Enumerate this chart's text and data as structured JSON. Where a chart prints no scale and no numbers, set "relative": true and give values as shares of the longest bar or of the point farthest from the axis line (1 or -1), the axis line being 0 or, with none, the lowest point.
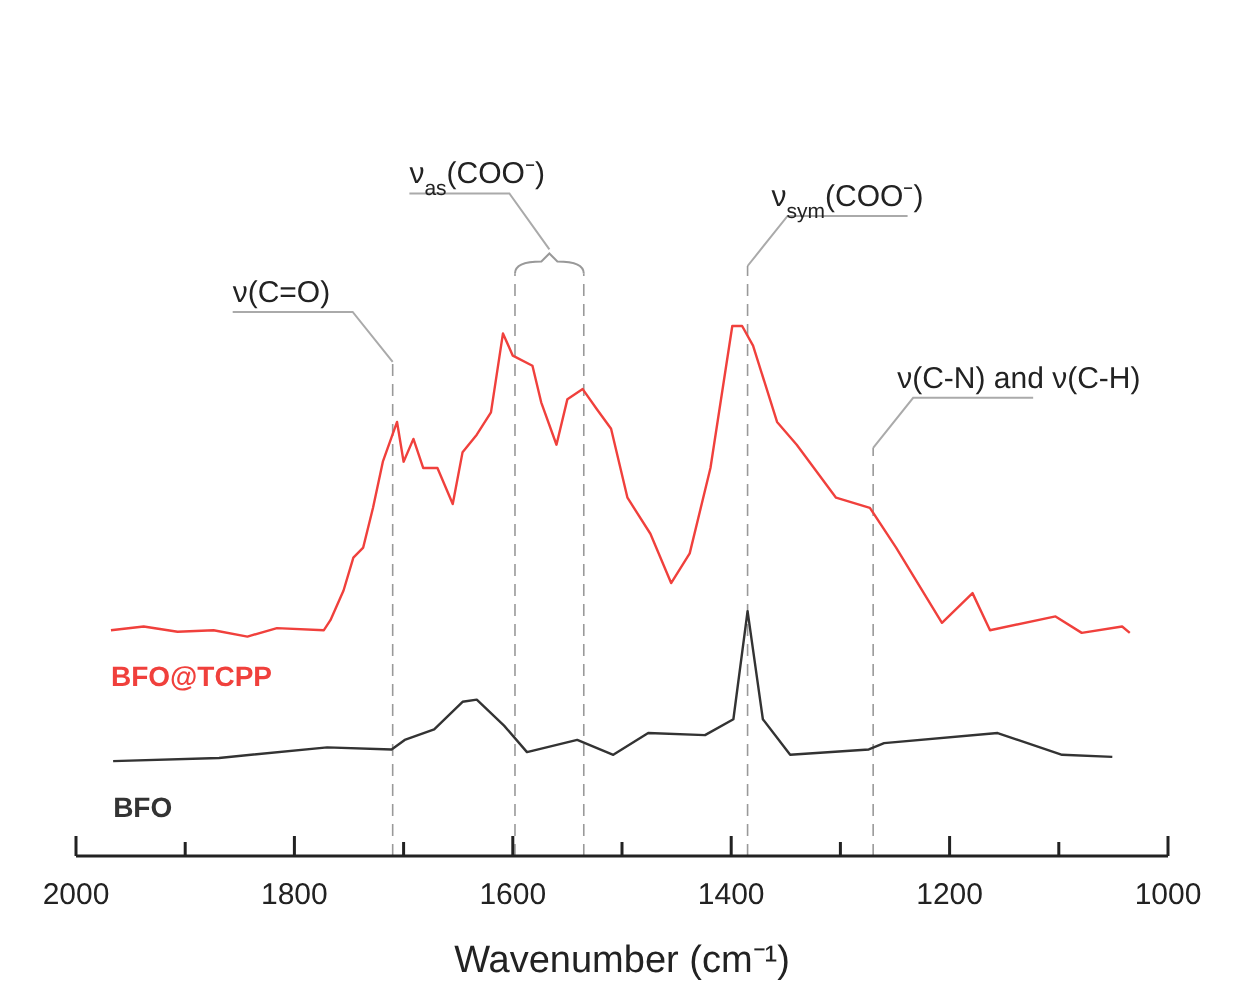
{
  "chart_data": {
    "type": "line",
    "xlabel": "Wavenumber (cm⁻¹)",
    "relative": true,
    "xlim": [
      2000,
      1000
    ],
    "xticks": [
      2000,
      {
        "value": 1900,
        "label": null
      },
      1800,
      {
        "value": 1700,
        "label": null
      },
      1600,
      {
        "value": 1500,
        "label": null
      },
      1400,
      {
        "value": 1300,
        "label": null
      },
      1200,
      {
        "value": 1100,
        "label": null
      },
      1000
    ],
    "legend": false,
    "grid": false,
    "line_style": "solid",
    "marker": "none",
    "series": [
      {
        "name": "BFO@TCPP",
        "color": "#f0403c",
        "x": [
          1968,
          1938,
          1907,
          1874,
          1843,
          1816,
          1773,
          1767,
          1755,
          1746,
          1737,
          1728,
          1719,
          1706,
          1700,
          1691,
          1682,
          1669,
          1655,
          1646,
          1633,
          1620,
          1609,
          1600,
          1582,
          1574,
          1560,
          1550,
          1536,
          1523,
          1510,
          1495,
          1474,
          1455,
          1438,
          1419,
          1399,
          1390,
          1380,
          1358,
          1340,
          1304,
          1273,
          1249,
          1207,
          1179,
          1163,
          1103,
          1079,
          1042,
          1035
        ],
        "values": [
          0.426,
          0.433,
          0.423,
          0.426,
          0.414,
          0.43,
          0.426,
          0.445,
          0.501,
          0.563,
          0.582,
          0.657,
          0.744,
          0.819,
          0.744,
          0.787,
          0.732,
          0.732,
          0.664,
          0.762,
          0.795,
          0.837,
          0.986,
          0.944,
          0.925,
          0.856,
          0.776,
          0.862,
          0.881,
          0.843,
          0.806,
          0.676,
          0.608,
          0.515,
          0.571,
          0.732,
          1,
          1,
          0.963,
          0.819,
          0.776,
          0.676,
          0.657,
          0.582,
          0.44,
          0.496,
          0.426,
          0.452,
          0.421,
          0.433,
          0.421
        ]
      },
      {
        "name": "BFO",
        "color": "#333333",
        "x": [
          1966,
          1869,
          1770,
          1711,
          1699,
          1672,
          1646,
          1633,
          1608,
          1587,
          1541,
          1508,
          1476,
          1424,
          1398,
          1385,
          1371,
          1346,
          1274,
          1260,
          1156,
          1097,
          1051
        ],
        "values": [
          0.179,
          0.185,
          0.205,
          0.201,
          0.219,
          0.239,
          0.291,
          0.295,
          0.246,
          0.196,
          0.219,
          0.191,
          0.232,
          0.228,
          0.258,
          0.462,
          0.258,
          0.191,
          0.201,
          0.213,
          0.232,
          0.191,
          0.187
        ]
      }
    ],
    "ref_lines": [
      {
        "axis": "x",
        "value": 1710,
        "label": "ν(C=O)"
      },
      {
        "axis": "x",
        "value": 1598,
        "label": "ν$_{as}$(COO⁻)"
      },
      {
        "axis": "x",
        "value": 1535,
        "label": null
      },
      {
        "axis": "x",
        "value": 1385,
        "label": "ν$_{sym}$(COO⁻)"
      },
      {
        "axis": "x",
        "value": 1270,
        "label": "ν(C-N) and ν(C-H)"
      }
    ]
  }
}
